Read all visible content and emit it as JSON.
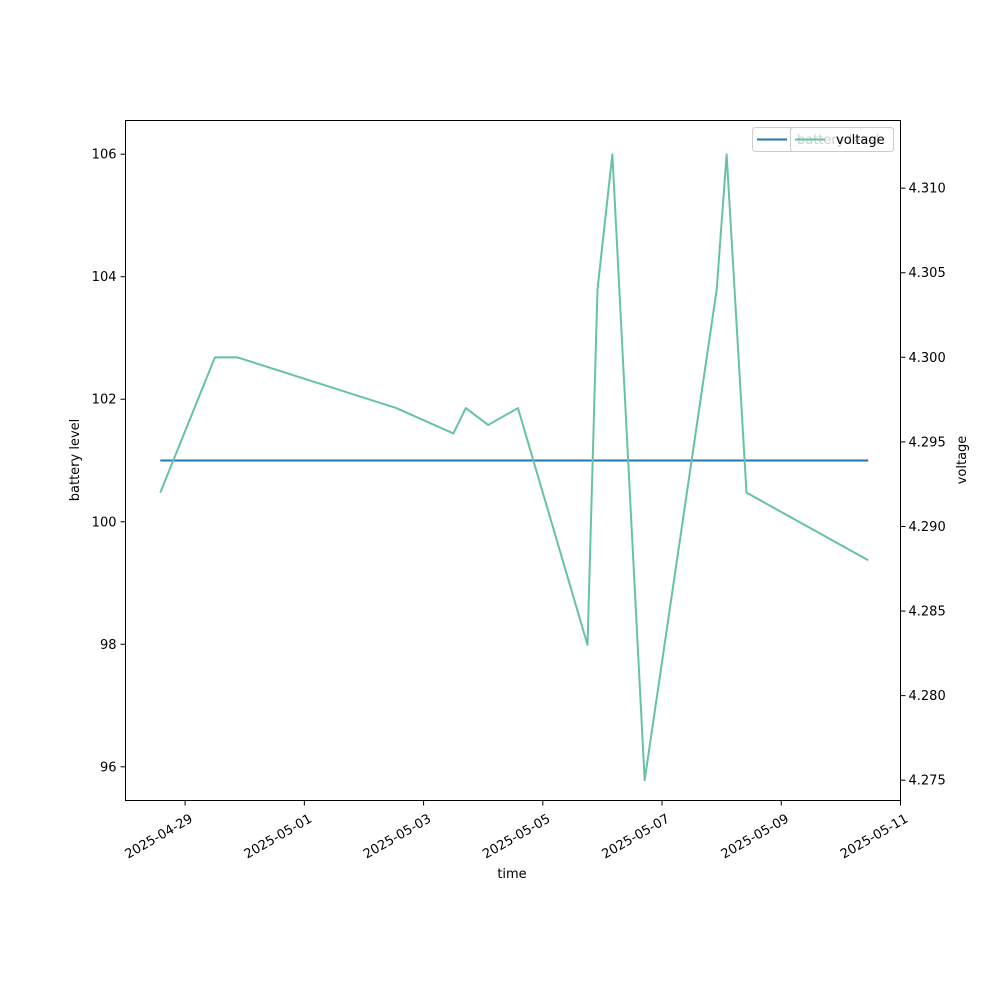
{
  "chart_data": {
    "type": "line",
    "xlabel": "time",
    "ylabel_left": "battery level",
    "ylabel_right": "voltage",
    "x_ticks": [
      "2025-04-29",
      "2025-05-01",
      "2025-05-03",
      "2025-05-05",
      "2025-05-07",
      "2025-05-09",
      "2025-05-11"
    ],
    "y_left_ticks": [
      96,
      98,
      100,
      102,
      104,
      106
    ],
    "y_right_ticks": [
      4.275,
      4.28,
      4.285,
      4.29,
      4.295,
      4.3,
      4.305,
      4.31
    ],
    "xlim": [
      "2025-04-28T00:00",
      "2025-05-11T00:00"
    ],
    "ylim_left": [
      95.45,
      106.55
    ],
    "ylim_right": [
      4.2738,
      4.314
    ],
    "legend_placement": "top-right",
    "grid": false,
    "series": [
      {
        "name": "battery level",
        "axis": "left",
        "color": "#1f77b4",
        "points": [
          {
            "x": "2025-04-28T14:00",
            "y": 101
          },
          {
            "x": "2025-05-10T11:00",
            "y": 101
          }
        ]
      },
      {
        "name": "voltage",
        "axis": "right",
        "color": "#66c2a5",
        "points": [
          {
            "x": "2025-04-28T14:00",
            "y": 4.292
          },
          {
            "x": "2025-04-29T12:00",
            "y": 4.3
          },
          {
            "x": "2025-04-29T21:00",
            "y": 4.3
          },
          {
            "x": "2025-05-02T13:00",
            "y": 4.297
          },
          {
            "x": "2025-05-03T12:00",
            "y": 4.2955
          },
          {
            "x": "2025-05-03T17:00",
            "y": 4.297
          },
          {
            "x": "2025-05-04T02:00",
            "y": 4.296
          },
          {
            "x": "2025-05-04T14:00",
            "y": 4.297
          },
          {
            "x": "2025-05-05T18:00",
            "y": 4.283
          },
          {
            "x": "2025-05-05T22:00",
            "y": 4.304
          },
          {
            "x": "2025-05-06T04:00",
            "y": 4.312
          },
          {
            "x": "2025-05-06T17:00",
            "y": 4.275
          },
          {
            "x": "2025-05-07T22:00",
            "y": 4.304
          },
          {
            "x": "2025-05-08T02:00",
            "y": 4.312
          },
          {
            "x": "2025-05-08T10:00",
            "y": 4.292
          },
          {
            "x": "2025-05-10T11:00",
            "y": 4.288
          }
        ]
      }
    ]
  }
}
